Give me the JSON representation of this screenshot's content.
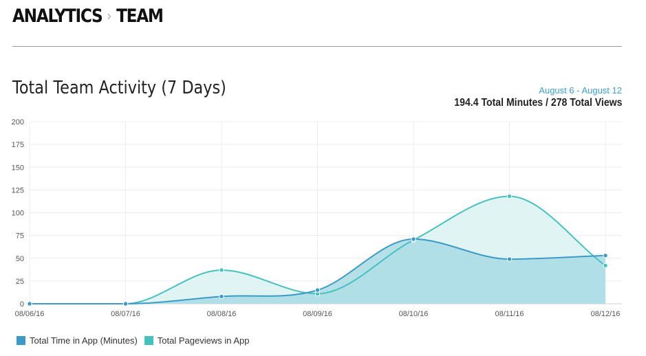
{
  "breadcrumb": {
    "root": "ANALYTICS",
    "separator": "›",
    "current": "TEAM"
  },
  "header": {
    "title": "Total Team Activity (7 Days)",
    "date_range": "August 6 - August 12",
    "totals": "194.4 Total Minutes / 278 Total Views"
  },
  "chart_data": {
    "type": "area",
    "x": [
      "08/06/16",
      "08/07/16",
      "08/08/16",
      "08/09/16",
      "08/10/16",
      "08/11/16",
      "08/12/16"
    ],
    "ylim": [
      0,
      200
    ],
    "yticks": [
      0,
      25,
      50,
      75,
      100,
      125,
      150,
      175,
      200
    ],
    "grid": true,
    "legend_position": "bottom-left",
    "series": [
      {
        "name": "Total Time in App (Minutes)",
        "color": "#3b9ac8",
        "fill": "#a9dbe4",
        "values": [
          0,
          0,
          8,
          15,
          71,
          49,
          53
        ]
      },
      {
        "name": "Total Pageviews in App",
        "color": "#45c1bf",
        "fill": "#dcf3f2",
        "values": [
          0,
          0,
          37,
          11,
          70,
          118,
          42
        ]
      }
    ]
  }
}
